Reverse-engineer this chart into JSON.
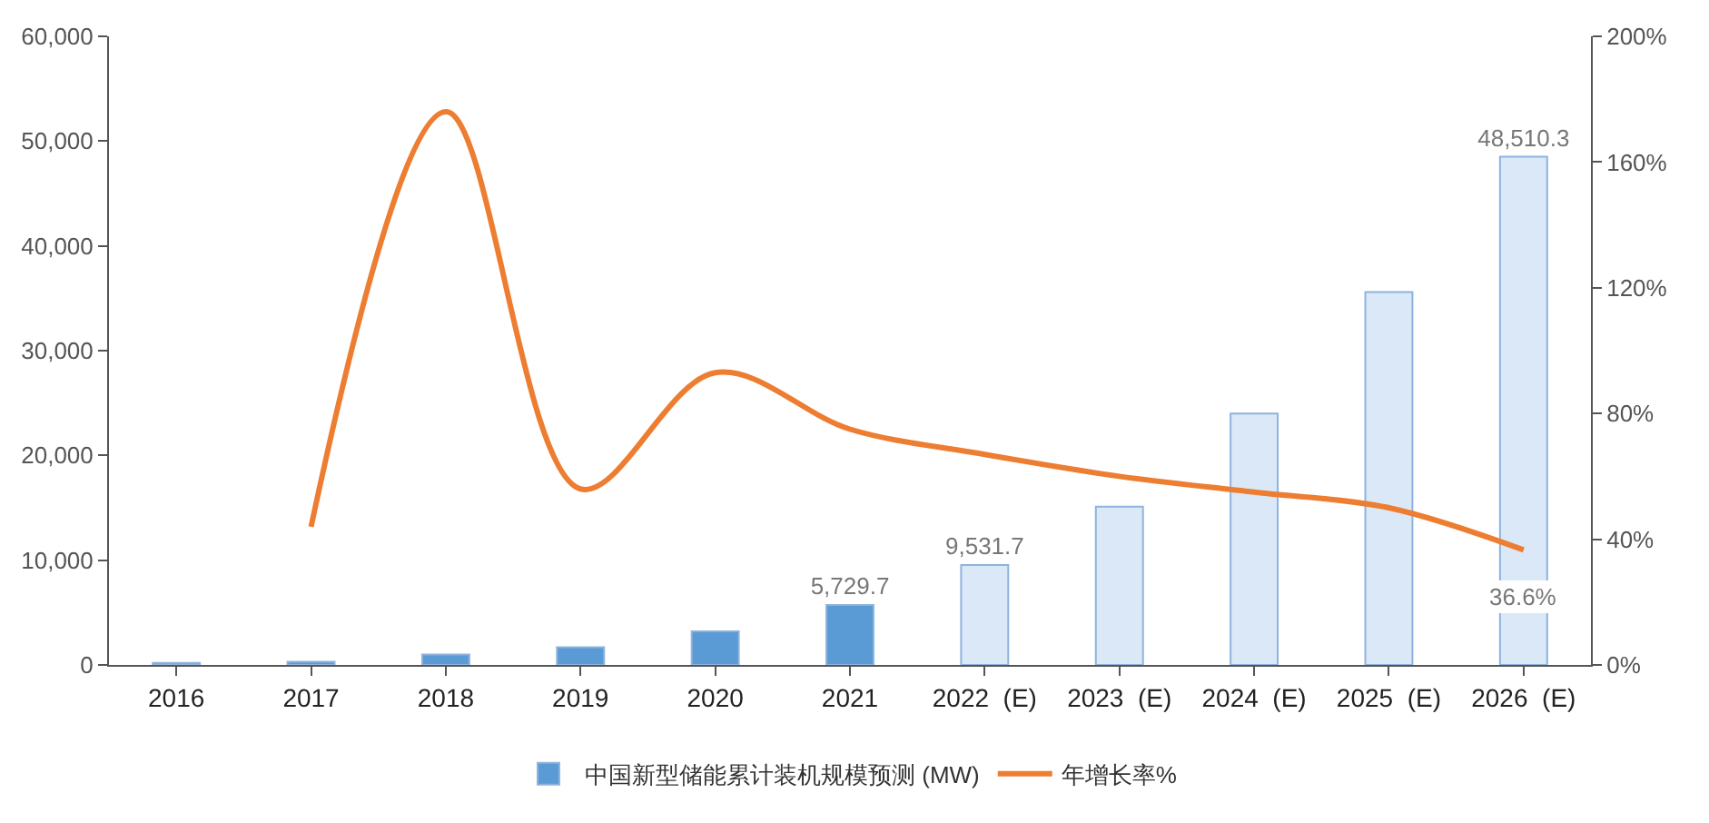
{
  "chart_data": {
    "type": "bar",
    "categories": [
      "2016",
      "2017",
      "2018",
      "2019",
      "2020",
      "2021",
      "2022  (E)",
      "2023  (E)",
      "2024  (E)",
      "2025  (E)",
      "2026  (E)"
    ],
    "series": [
      {
        "name": "中国新型储能累计装机规模预测 (MW)",
        "colors": [
          "#5b9bd5",
          "#5b9bd5",
          "#5b9bd5",
          "#5b9bd5",
          "#5b9bd5",
          "#5b9bd5",
          "#dae8f7",
          "#dae8f7",
          "#dae8f7",
          "#dae8f7",
          "#dae8f7"
        ],
        "values": [
          200,
          300,
          1000,
          1700,
          3200,
          5729.7,
          9531.7,
          15100,
          24000,
          35600,
          48510.3
        ],
        "value_labels": [
          null,
          null,
          null,
          null,
          null,
          "5,729.7",
          "9,531.7",
          null,
          null,
          null,
          "48,510.3"
        ]
      },
      {
        "name": "年增长率%",
        "type": "line",
        "axis": "y2",
        "color": "#ed7d31",
        "values": [
          null,
          44,
          176,
          56,
          93,
          75,
          67,
          60,
          55,
          50,
          36.6
        ],
        "value_labels": [
          null,
          null,
          null,
          null,
          null,
          null,
          null,
          null,
          null,
          null,
          "36.6%"
        ]
      }
    ],
    "ylim": [
      0,
      60000
    ],
    "yticks": [
      0,
      {
        "value": 10000,
        "label": "10,000"
      },
      {
        "value": 20000,
        "label": "20,000"
      },
      {
        "value": 30000,
        "label": "30,000"
      },
      {
        "value": 40000,
        "label": "40,000"
      },
      {
        "value": 50000,
        "label": "50,000"
      },
      {
        "value": 60000,
        "label": "60,000"
      }
    ],
    "y2lim": [
      0,
      200
    ],
    "y2ticks": [
      {
        "value": 0,
        "label": "0%"
      },
      {
        "value": 40,
        "label": "40%"
      },
      {
        "value": 80,
        "label": "80%"
      },
      {
        "value": 120,
        "label": "120%"
      },
      {
        "value": 160,
        "label": "160%"
      },
      {
        "value": 200,
        "label": "200%"
      }
    ],
    "grid": false,
    "legend": "bottom",
    "marker": "none",
    "line_style": "solid"
  }
}
